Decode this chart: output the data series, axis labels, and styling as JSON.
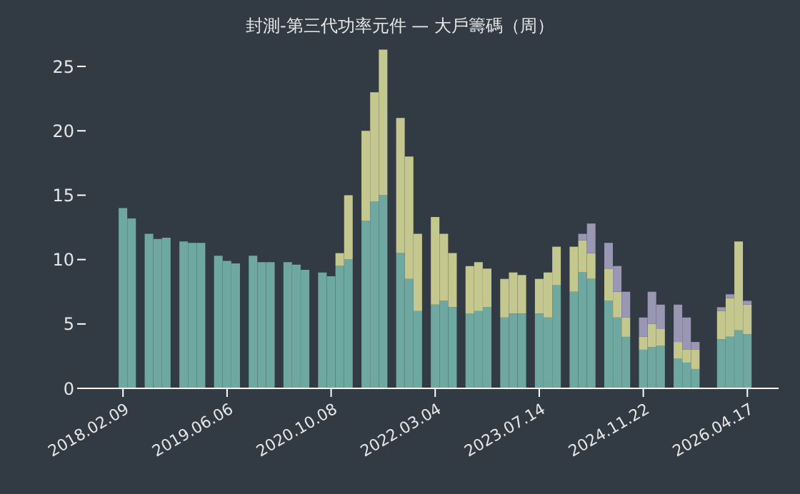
{
  "chart_data": {
    "type": "bar",
    "title": "封測-第三代功率元件 — 大戶籌碼（周）",
    "stacked": true,
    "categories": [
      "2018.02.09",
      null,
      null,
      null,
      null,
      null,
      null,
      null,
      null,
      null,
      null,
      null,
      "2019.06.06",
      null,
      null,
      null,
      null,
      null,
      null,
      null,
      null,
      null,
      null,
      null,
      "2020.10.08",
      null,
      null,
      null,
      null,
      null,
      null,
      null,
      null,
      null,
      null,
      null,
      "2022.03.04",
      null,
      null,
      null,
      null,
      null,
      null,
      null,
      null,
      null,
      null,
      null,
      "2023.07.14",
      null,
      null,
      null,
      null,
      null,
      null,
      null,
      null,
      null,
      null,
      null,
      "2024.11.22",
      null,
      null,
      null,
      null,
      null,
      null,
      null,
      null,
      null,
      null,
      null,
      "2026.04.17"
    ],
    "series": [
      {
        "color": "#6fa8a0",
        "values": [
          14,
          13.2,
          null,
          12,
          11.6,
          11.7,
          null,
          11.4,
          11.3,
          11.3,
          null,
          10.3,
          9.9,
          9.7,
          null,
          10.3,
          9.8,
          9.8,
          null,
          9.8,
          9.6,
          9.2,
          null,
          9,
          8.7,
          9.5,
          10,
          null,
          13,
          14.5,
          15,
          null,
          10.5,
          8.5,
          6,
          null,
          6.5,
          6.8,
          6.3,
          null,
          5.8,
          6,
          6.3,
          null,
          5.5,
          5.8,
          5.8,
          null,
          5.8,
          5.5,
          8,
          null,
          7.5,
          9,
          8.5,
          null,
          6.8,
          5.5,
          4,
          null,
          3,
          3.2,
          3.3,
          null,
          2.3,
          2,
          1.5,
          null,
          null,
          3.8,
          4,
          4.5,
          4.2
        ]
      },
      {
        "color": "#c5c88e",
        "values": [
          0,
          0,
          null,
          0,
          0,
          0,
          null,
          0,
          0,
          0,
          null,
          0,
          0,
          0,
          null,
          0,
          0,
          0,
          null,
          0,
          0,
          0,
          null,
          0,
          0,
          1,
          5,
          null,
          7,
          8.5,
          11.3,
          null,
          10.5,
          9.5,
          6,
          null,
          6.8,
          5.2,
          4.2,
          null,
          3.7,
          3.8,
          3,
          null,
          3,
          3.2,
          3,
          null,
          2.7,
          3.5,
          3,
          null,
          3.5,
          2.5,
          2,
          null,
          2.5,
          2,
          1.5,
          null,
          1,
          1.8,
          1.3,
          null,
          1.3,
          1,
          1.5,
          null,
          null,
          2.2,
          3,
          6.9,
          2.3
        ]
      },
      {
        "color": "#9a97b5",
        "values": [
          0,
          0,
          null,
          0,
          0,
          0,
          null,
          0,
          0,
          0,
          null,
          0,
          0,
          0,
          null,
          0,
          0,
          0,
          null,
          0,
          0,
          0,
          null,
          0,
          0,
          0,
          0,
          null,
          0,
          0,
          0,
          null,
          0,
          0,
          0,
          null,
          0,
          0,
          0,
          null,
          0,
          0,
          0,
          null,
          0,
          0,
          0,
          null,
          0,
          0,
          0,
          null,
          0,
          0.5,
          2.3,
          null,
          2,
          2,
          2,
          null,
          1.5,
          2.5,
          1.9,
          null,
          2.9,
          2.5,
          0.6,
          null,
          null,
          0.3,
          0.3,
          0,
          0.3
        ]
      }
    ],
    "ylim": [
      0,
      26.5
    ],
    "yticks": [
      0,
      5,
      10,
      15,
      20,
      25
    ]
  }
}
